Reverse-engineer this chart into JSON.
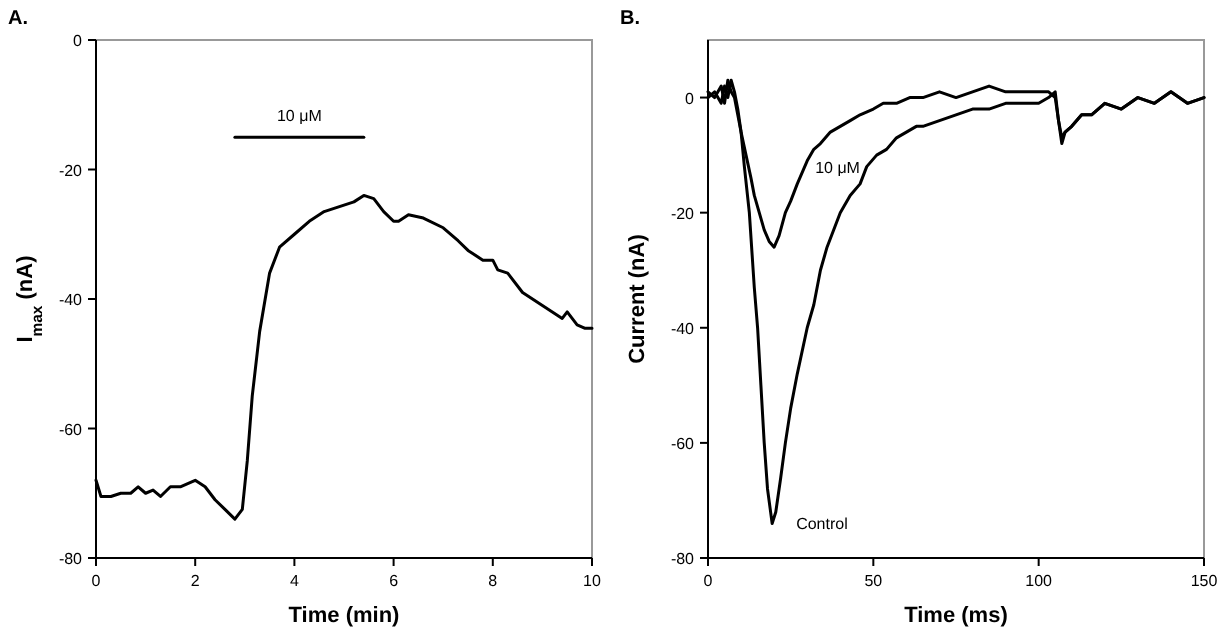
{
  "chart_data": [
    {
      "type": "line",
      "title": "A.",
      "xlabel": "Time (min)",
      "ylabel": "I$_{max}$ (nA)",
      "xlim": [
        0,
        10
      ],
      "ylim": [
        -80,
        0
      ],
      "xticks": [
        0,
        2,
        4,
        6,
        8,
        10
      ],
      "yticks": [
        0,
        -20,
        -40,
        -60,
        -80
      ],
      "grid": false,
      "marker": "none",
      "line_style": "solid",
      "series": [
        {
          "color": "#000000",
          "x": [
            0,
            0.1,
            0.3,
            0.5,
            0.7,
            0.85,
            1,
            1.15,
            1.3,
            1.5,
            1.7,
            2,
            2.2,
            2.4,
            2.6,
            2.8,
            2.95,
            3.05,
            3.15,
            3.3,
            3.5,
            3.7,
            4,
            4.3,
            4.6,
            5,
            5.2,
            5.4,
            5.6,
            5.8,
            6,
            6.1,
            6.3,
            6.6,
            7,
            7.3,
            7.5,
            7.8,
            8,
            8.1,
            8.3,
            8.6,
            9,
            9.4,
            9.5,
            9.7,
            9.85,
            10
          ],
          "values": [
            -68,
            -70.5,
            -70.5,
            -70,
            -70,
            -69,
            -70,
            -69.5,
            -70.5,
            -69,
            -69,
            -68,
            -69,
            -71,
            -72.5,
            -74,
            -72.5,
            -65,
            -55,
            -45,
            -36,
            -32,
            -30,
            -28,
            -26.5,
            -25.5,
            -25,
            -24,
            -24.5,
            -26.5,
            -28,
            -28,
            -27,
            -27.5,
            -29,
            -31,
            -32.5,
            -34,
            -34,
            -35.5,
            -36,
            -39,
            -41,
            -43,
            -42,
            -44,
            -44.5,
            -44.5
          ]
        },
        {
          "color": "#000000",
          "x": [
            2.8,
            5.4
          ],
          "values": [
            -15,
            -15
          ]
        }
      ],
      "annotations": [
        "10 μM"
      ]
    },
    {
      "type": "line",
      "title": "B.",
      "xlabel": "Time (ms)",
      "ylabel": "Current (nA)",
      "xlim": [
        0,
        150
      ],
      "ylim": [
        -80,
        10
      ],
      "xticks": [
        0,
        50,
        100,
        150
      ],
      "yticks": [
        0,
        -20,
        -40,
        -60,
        -80
      ],
      "grid": false,
      "marker": "none",
      "line_style": "solid",
      "series": [
        {
          "name": "Control",
          "color": "#000000",
          "x": [
            0,
            2,
            4,
            5,
            6,
            7,
            8,
            9,
            10,
            11,
            12.5,
            14,
            15,
            16,
            17,
            18,
            19.4,
            20.5,
            22,
            23.4,
            25,
            27,
            30,
            32,
            34,
            36,
            38,
            40,
            43,
            46,
            48,
            51,
            54,
            57,
            60,
            63,
            65,
            70,
            75,
            80,
            85,
            90,
            95,
            100,
            103,
            105,
            106,
            107,
            108,
            110,
            113,
            116,
            120,
            125,
            130,
            135,
            140,
            145,
            150
          ],
          "values": [
            0,
            1,
            -1,
            2,
            0,
            3,
            1,
            -2,
            -6,
            -12,
            -20,
            -33,
            -40,
            -50,
            -60,
            -68,
            -74,
            -72,
            -66,
            -60,
            -54,
            -48,
            -40,
            -36,
            -30,
            -26,
            -23,
            -20,
            -17,
            -15,
            -12,
            -10,
            -9,
            -7,
            -6,
            -5,
            -5,
            -4,
            -3,
            -2,
            -2,
            -1,
            -1,
            -1,
            0,
            1,
            -4,
            -8,
            -6,
            -5,
            -3,
            -3,
            -1,
            -2,
            0,
            -1,
            1,
            -1,
            0
          ]
        },
        {
          "name": "10 μM",
          "color": "#000000",
          "x": [
            0,
            2,
            4,
            5,
            6,
            7,
            8,
            9,
            10,
            11.5,
            13,
            14,
            15.5,
            17,
            18.5,
            20,
            21.5,
            23.4,
            25,
            27,
            30,
            32,
            34,
            37,
            40,
            43,
            46,
            50,
            53,
            57,
            61,
            65,
            70,
            75,
            80,
            85,
            90,
            95,
            100,
            103,
            105,
            106,
            107,
            108,
            110,
            113,
            116,
            120,
            125,
            130,
            135,
            140,
            145,
            150
          ],
          "values": [
            1,
            0,
            2,
            -1,
            3,
            1,
            0,
            -3,
            -6,
            -10,
            -14,
            -17,
            -20,
            -23,
            -25,
            -26,
            -24,
            -20,
            -18,
            -15,
            -11,
            -9,
            -8,
            -6,
            -5,
            -4,
            -3,
            -2,
            -1,
            -1,
            0,
            0,
            1,
            0,
            1,
            2,
            1,
            1,
            1,
            1,
            0,
            -4,
            -7,
            -6,
            -5,
            -3,
            -3,
            -1,
            -2,
            0,
            -1,
            1,
            -1,
            0
          ]
        }
      ]
    }
  ]
}
